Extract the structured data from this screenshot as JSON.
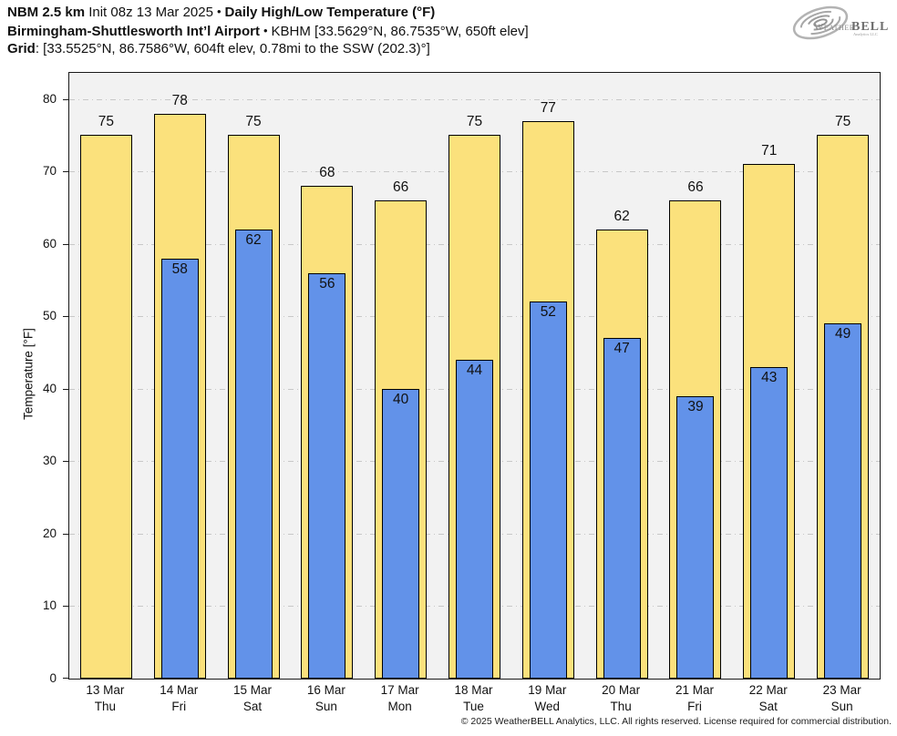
{
  "header": {
    "model": "NBM 2.5 km",
    "init": "Init 08z 13 Mar 2025",
    "bullet": "•",
    "product": "Daily High/Low Temperature (°F)",
    "station": "Birmingham-Shuttlesworth Int’l Airport",
    "station_meta": "KBHM [33.5629°N, 86.7535°W, 650ft elev]",
    "grid_label": "Grid",
    "grid_meta": ": [33.5525°N, 86.7586°W, 604ft elev, 0.78mi to the SSW (202.3)°]"
  },
  "logo": {
    "weather": "Weather",
    "bell": "BELL",
    "sub": "Analytics LLC"
  },
  "footer": {
    "copyright": "© 2025 WeatherBELL Analytics, LLC. All rights reserved. License required for commercial distribution."
  },
  "colors": {
    "high_fill": "#fbe17c",
    "low_fill": "#6292e9",
    "bar_border": "#000000",
    "plot_bg": "#f2f2f2",
    "gridline": "#c8c8c8"
  },
  "chart_data": {
    "type": "bar",
    "title": "Daily High/Low Temperature (°F)",
    "xlabel": "",
    "ylabel": "Temperature [°F]",
    "ylim": [
      0,
      83.6
    ],
    "yticks": [
      0,
      10,
      20,
      30,
      40,
      50,
      60,
      70,
      80
    ],
    "grid": true,
    "legend_position": "none",
    "categories": [
      "13 Mar",
      "14 Mar",
      "15 Mar",
      "16 Mar",
      "17 Mar",
      "18 Mar",
      "19 Mar",
      "20 Mar",
      "21 Mar",
      "22 Mar",
      "23 Mar"
    ],
    "weekdays": [
      "Thu",
      "Fri",
      "Sat",
      "Sun",
      "Mon",
      "Tue",
      "Wed",
      "Thu",
      "Fri",
      "Sat",
      "Sun"
    ],
    "series": [
      {
        "name": "High",
        "color": "#fbe17c",
        "values": [
          75,
          78,
          75,
          68,
          66,
          75,
          77,
          62,
          66,
          71,
          75
        ]
      },
      {
        "name": "Low",
        "color": "#6292e9",
        "values": [
          null,
          58,
          62,
          56,
          40,
          44,
          52,
          47,
          39,
          43,
          49
        ]
      }
    ]
  }
}
